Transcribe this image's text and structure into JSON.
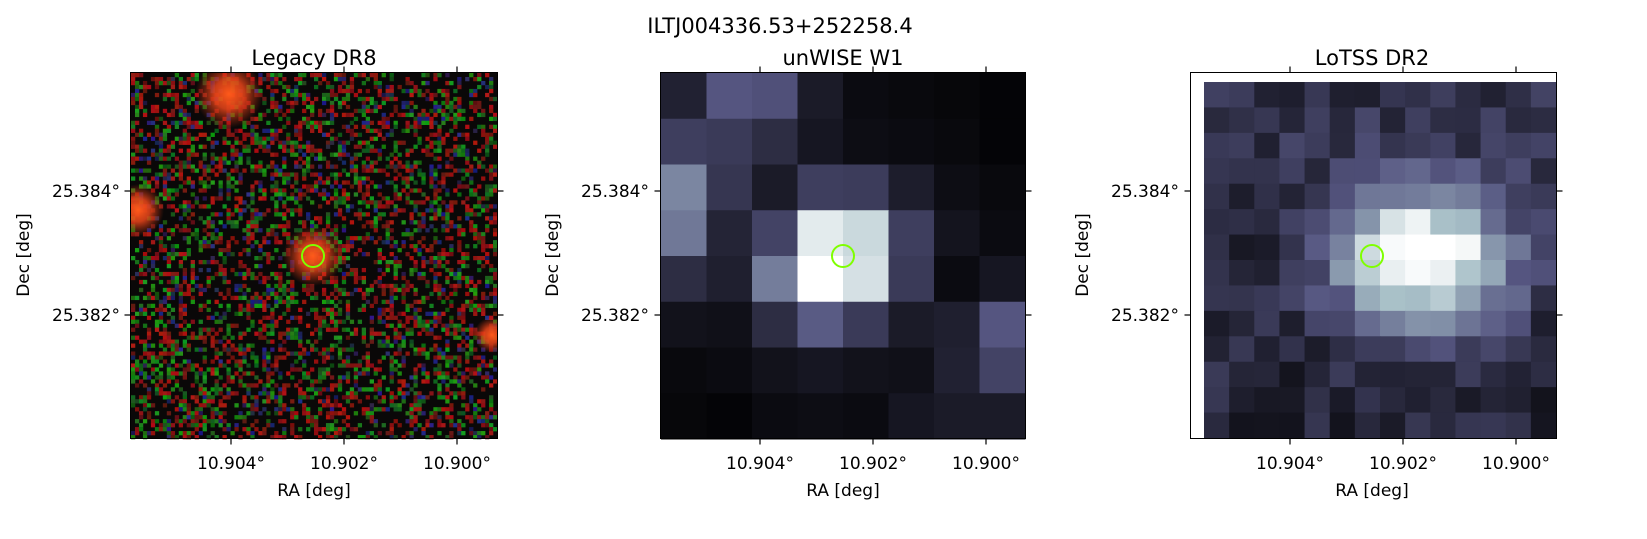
{
  "figure": {
    "title": "ILTJ004336.53+252258.4"
  },
  "panels": [
    {
      "id": "legacy",
      "title": "Legacy DR8",
      "xlabel": "RA [deg]",
      "ylabel": "Dec [deg]",
      "xticks": [
        "10.904°",
        "10.902°",
        "10.900°"
      ],
      "yticks": [
        "25.384°",
        "25.382°"
      ],
      "colormap": "rgb-composite"
    },
    {
      "id": "unwise",
      "title": "unWISE W1",
      "xlabel": "RA [deg]",
      "ylabel": "Dec [deg]",
      "xticks": [
        "10.904°",
        "10.902°",
        "10.900°"
      ],
      "yticks": [
        "25.384°",
        "25.382°"
      ],
      "colormap": "bone"
    },
    {
      "id": "lotss",
      "title": "LoTSS DR2",
      "xlabel": "RA [deg]",
      "ylabel": "Dec [deg]",
      "xticks": [
        "10.904°",
        "10.902°",
        "10.900°"
      ],
      "yticks": [
        "25.384°",
        "25.382°"
      ],
      "colormap": "bone"
    }
  ],
  "marker": {
    "shape": "circle",
    "color": "#7fff00"
  },
  "colors": {
    "marker": "#7fff00",
    "axis": "#000000"
  }
}
